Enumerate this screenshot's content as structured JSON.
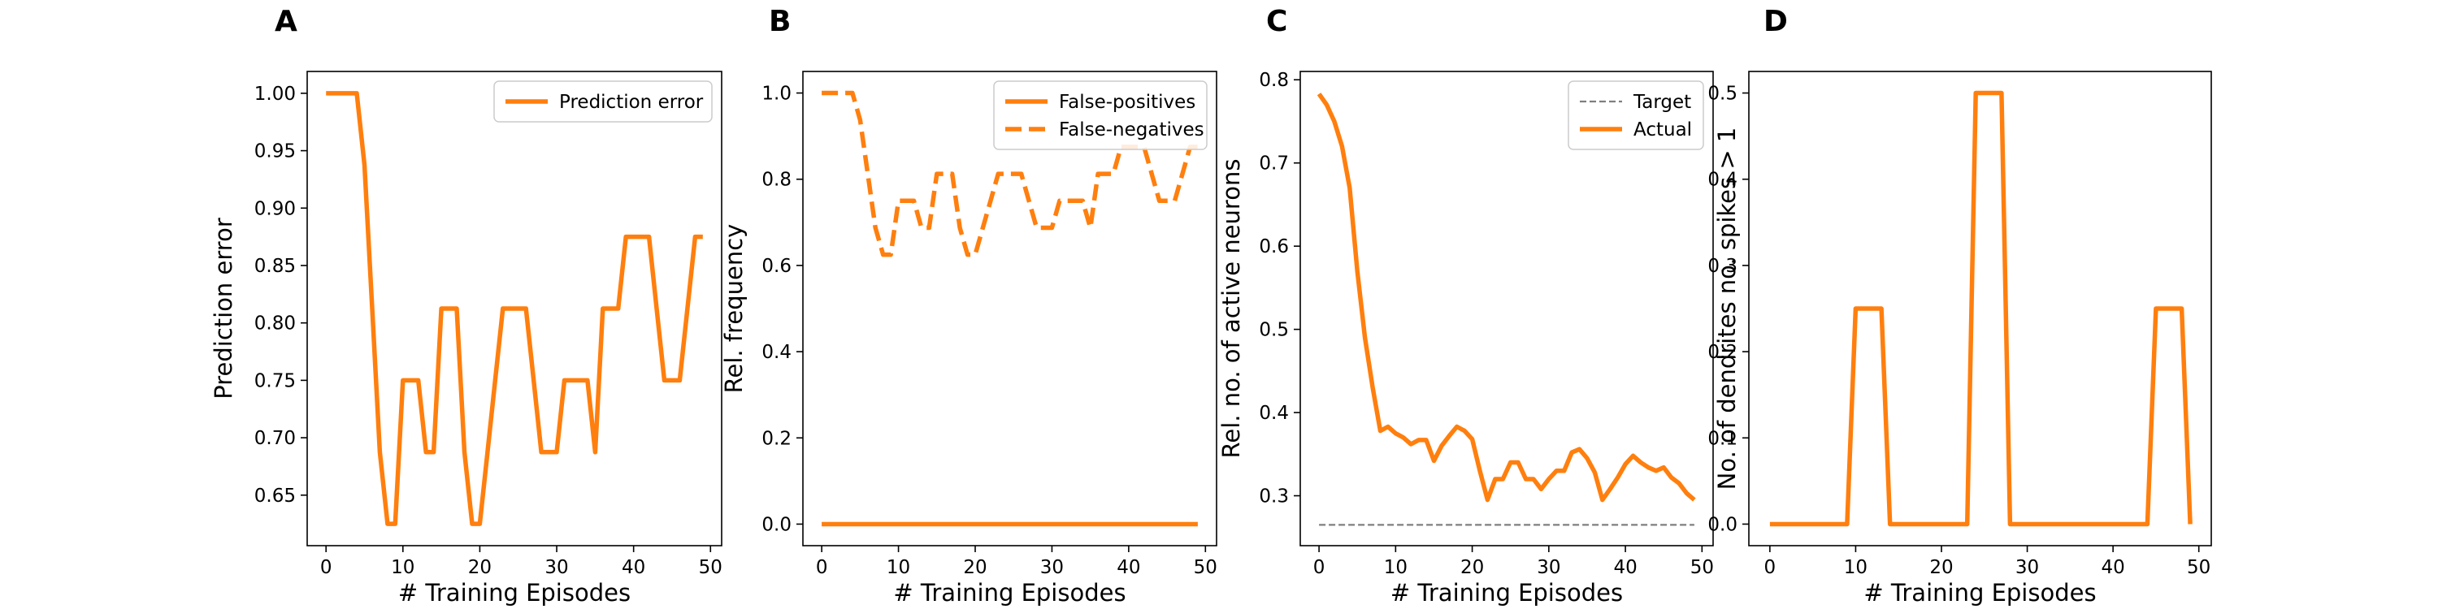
{
  "chart_data": [
    {
      "panel": "A",
      "type": "line",
      "xlabel": "# Training Episodes",
      "ylabel": "Prediction error",
      "xlim": [
        -2.45,
        51.45
      ],
      "ylim": [
        0.606,
        1.019
      ],
      "xticks": [
        0,
        10,
        20,
        30,
        40,
        50
      ],
      "yticks": [
        0.65,
        0.7,
        0.75,
        0.8,
        0.85,
        0.9,
        0.95,
        1.0
      ],
      "ytick_labels": [
        "0.65",
        "0.70",
        "0.75",
        "0.80",
        "0.85",
        "0.90",
        "0.95",
        "1.00"
      ],
      "grid": false,
      "legend": "upper right",
      "series": [
        {
          "name": "Prediction error",
          "color": "#ff7f0e",
          "style": "solid",
          "x": [
            0,
            1,
            2,
            3,
            4,
            5,
            6,
            7,
            8,
            9,
            10,
            11,
            12,
            13,
            14,
            15,
            16,
            17,
            18,
            19,
            20,
            21,
            22,
            23,
            24,
            25,
            26,
            27,
            28,
            29,
            30,
            31,
            32,
            33,
            34,
            35,
            36,
            37,
            38,
            39,
            40,
            41,
            42,
            43,
            44,
            45,
            46,
            47,
            48,
            49
          ],
          "y": [
            1.0,
            1.0,
            1.0,
            1.0,
            1.0,
            0.9375,
            0.8125,
            0.6875,
            0.625,
            0.625,
            0.75,
            0.75,
            0.75,
            0.6875,
            0.6875,
            0.8125,
            0.8125,
            0.8125,
            0.6875,
            0.625,
            0.625,
            0.6875,
            0.75,
            0.8125,
            0.8125,
            0.8125,
            0.8125,
            0.75,
            0.6875,
            0.6875,
            0.6875,
            0.75,
            0.75,
            0.75,
            0.75,
            0.6875,
            0.8125,
            0.8125,
            0.8125,
            0.875,
            0.875,
            0.875,
            0.875,
            0.8125,
            0.75,
            0.75,
            0.75,
            0.8125,
            0.875,
            0.875
          ]
        }
      ]
    },
    {
      "panel": "B",
      "type": "line",
      "xlabel": "# Training Episodes",
      "ylabel": "Rel. frequency",
      "xlim": [
        -2.45,
        51.45
      ],
      "ylim": [
        -0.05,
        1.05
      ],
      "xticks": [
        0,
        10,
        20,
        30,
        40,
        50
      ],
      "yticks": [
        0.0,
        0.2,
        0.4,
        0.6,
        0.8,
        1.0
      ],
      "ytick_labels": [
        "0.0",
        "0.2",
        "0.4",
        "0.6",
        "0.8",
        "1.0"
      ],
      "grid": false,
      "legend": "upper right",
      "series": [
        {
          "name": "False-positives",
          "color": "#ff7f0e",
          "style": "solid",
          "x": [
            0,
            1,
            2,
            3,
            4,
            5,
            6,
            7,
            8,
            9,
            10,
            11,
            12,
            13,
            14,
            15,
            16,
            17,
            18,
            19,
            20,
            21,
            22,
            23,
            24,
            25,
            26,
            27,
            28,
            29,
            30,
            31,
            32,
            33,
            34,
            35,
            36,
            37,
            38,
            39,
            40,
            41,
            42,
            43,
            44,
            45,
            46,
            47,
            48,
            49
          ],
          "y": [
            0,
            0,
            0,
            0,
            0,
            0,
            0,
            0,
            0,
            0,
            0,
            0,
            0,
            0,
            0,
            0,
            0,
            0,
            0,
            0,
            0,
            0,
            0,
            0,
            0,
            0,
            0,
            0,
            0,
            0,
            0,
            0,
            0,
            0,
            0,
            0,
            0,
            0,
            0,
            0,
            0,
            0,
            0,
            0,
            0,
            0,
            0,
            0,
            0,
            0
          ]
        },
        {
          "name": "False-negatives",
          "color": "#ff7f0e",
          "style": "dashed",
          "x": [
            0,
            1,
            2,
            3,
            4,
            5,
            6,
            7,
            8,
            9,
            10,
            11,
            12,
            13,
            14,
            15,
            16,
            17,
            18,
            19,
            20,
            21,
            22,
            23,
            24,
            25,
            26,
            27,
            28,
            29,
            30,
            31,
            32,
            33,
            34,
            35,
            36,
            37,
            38,
            39,
            40,
            41,
            42,
            43,
            44,
            45,
            46,
            47,
            48,
            49
          ],
          "y": [
            1.0,
            1.0,
            1.0,
            1.0,
            1.0,
            0.9375,
            0.8125,
            0.6875,
            0.625,
            0.625,
            0.75,
            0.75,
            0.75,
            0.6875,
            0.6875,
            0.8125,
            0.8125,
            0.8125,
            0.6875,
            0.625,
            0.625,
            0.6875,
            0.75,
            0.8125,
            0.8125,
            0.8125,
            0.8125,
            0.75,
            0.6875,
            0.6875,
            0.6875,
            0.75,
            0.75,
            0.75,
            0.75,
            0.6875,
            0.8125,
            0.8125,
            0.8125,
            0.875,
            0.875,
            0.875,
            0.875,
            0.8125,
            0.75,
            0.75,
            0.75,
            0.8125,
            0.875,
            0.875
          ]
        }
      ]
    },
    {
      "panel": "C",
      "type": "line",
      "xlabel": "# Training Episodes",
      "ylabel": "Rel. no. of active neurons",
      "xlim": [
        -2.45,
        51.45
      ],
      "ylim": [
        0.24,
        0.81
      ],
      "xticks": [
        0,
        10,
        20,
        30,
        40,
        50
      ],
      "yticks": [
        0.3,
        0.4,
        0.5,
        0.6,
        0.7,
        0.8
      ],
      "ytick_labels": [
        "0.3",
        "0.4",
        "0.5",
        "0.6",
        "0.7",
        "0.8"
      ],
      "grid": false,
      "legend": "upper right",
      "series": [
        {
          "name": "Target",
          "color": "#7f7f7f",
          "style": "dashed",
          "x": [
            0,
            49
          ],
          "y": [
            0.265,
            0.265
          ]
        },
        {
          "name": "Actual",
          "color": "#ff7f0e",
          "style": "solid",
          "x": [
            0,
            1,
            2,
            3,
            4,
            5,
            6,
            7,
            8,
            9,
            10,
            11,
            12,
            13,
            14,
            15,
            16,
            17,
            18,
            19,
            20,
            21,
            22,
            23,
            24,
            25,
            26,
            27,
            28,
            29,
            30,
            31,
            32,
            33,
            34,
            35,
            36,
            37,
            38,
            39,
            40,
            41,
            42,
            43,
            44,
            45,
            46,
            47,
            48,
            49
          ],
          "y": [
            0.783,
            0.77,
            0.75,
            0.72,
            0.67,
            0.57,
            0.49,
            0.43,
            0.378,
            0.383,
            0.375,
            0.37,
            0.362,
            0.367,
            0.367,
            0.342,
            0.36,
            0.372,
            0.383,
            0.378,
            0.368,
            0.33,
            0.295,
            0.32,
            0.32,
            0.34,
            0.34,
            0.32,
            0.32,
            0.308,
            0.32,
            0.33,
            0.33,
            0.352,
            0.356,
            0.345,
            0.328,
            0.295,
            0.308,
            0.322,
            0.338,
            0.348,
            0.34,
            0.334,
            0.33,
            0.334,
            0.322,
            0.315,
            0.303,
            0.295
          ]
        }
      ]
    },
    {
      "panel": "D",
      "type": "line",
      "xlabel": "# Training Episodes",
      "ylabel": "No. of dendrites no. spikes > 1",
      "xlim": [
        -2.45,
        51.45
      ],
      "ylim": [
        -0.025,
        0.525
      ],
      "xticks": [
        0,
        10,
        20,
        30,
        40,
        50
      ],
      "yticks": [
        0.0,
        0.1,
        0.2,
        0.3,
        0.4,
        0.5
      ],
      "ytick_labels": [
        "0.0",
        "0.1",
        "0.2",
        "0.3",
        "0.4",
        "0.5"
      ],
      "grid": false,
      "legend": "none",
      "series": [
        {
          "name": "",
          "color": "#ff7f0e",
          "style": "solid",
          "x": [
            0,
            1,
            2,
            3,
            4,
            5,
            6,
            7,
            8,
            9,
            10,
            11,
            12,
            13,
            14,
            15,
            16,
            17,
            18,
            19,
            20,
            21,
            22,
            23,
            24,
            25,
            26,
            27,
            28,
            29,
            30,
            31,
            32,
            33,
            34,
            35,
            36,
            37,
            38,
            39,
            40,
            41,
            42,
            43,
            44,
            45,
            46,
            47,
            48,
            49
          ],
          "y": [
            0,
            0,
            0,
            0,
            0,
            0,
            0,
            0,
            0,
            0,
            0.25,
            0.25,
            0.25,
            0.25,
            0,
            0,
            0,
            0,
            0,
            0,
            0,
            0,
            0,
            0,
            0.5,
            0.5,
            0.5,
            0.5,
            0,
            0,
            0,
            0,
            0,
            0,
            0,
            0,
            0,
            0,
            0,
            0,
            0,
            0,
            0,
            0,
            0,
            0.25,
            0.25,
            0.25,
            0.25,
            0
          ]
        }
      ]
    }
  ]
}
